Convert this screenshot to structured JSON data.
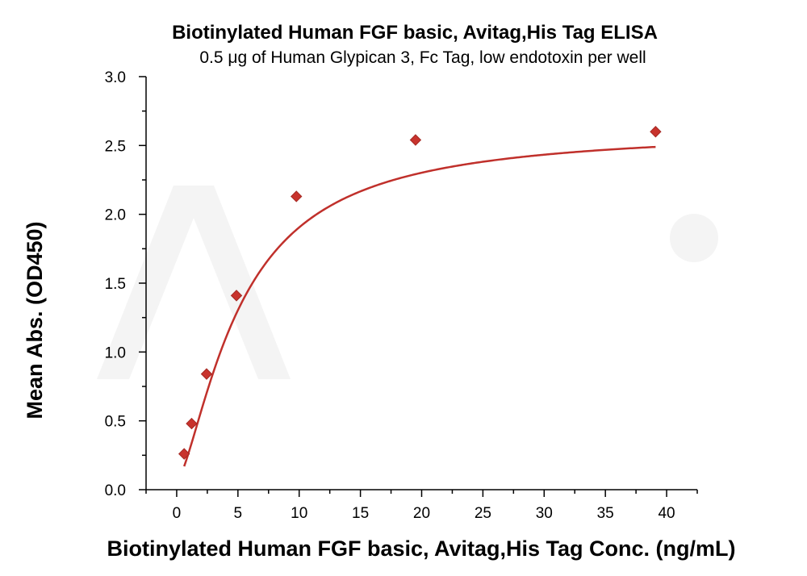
{
  "chart_data": {
    "type": "scatter",
    "title": "Biotinylated Human FGF basic, Avitag,His Tag ELISA",
    "subtitle": "0.5 μg of Human Glypican 3, Fc Tag, low endotoxin per well",
    "xlabel": "Biotinylated Human FGF basic, Avitag,His Tag Conc. (ng/mL)",
    "ylabel": "Mean Abs. (OD450)",
    "xlim": [
      -2.5,
      42.5
    ],
    "ylim": [
      0,
      3.0
    ],
    "x_ticks": [
      "0",
      "5",
      "10",
      "15",
      "20",
      "25",
      "30",
      "35",
      "40"
    ],
    "y_ticks": [
      "0.0",
      "0.5",
      "1.0",
      "1.5",
      "2.0",
      "2.5",
      "3.0"
    ],
    "grid": false,
    "points": [
      {
        "x": 0.61,
        "y": 0.26
      },
      {
        "x": 1.22,
        "y": 0.48
      },
      {
        "x": 2.44,
        "y": 0.84
      },
      {
        "x": 4.88,
        "y": 1.41
      },
      {
        "x": 9.77,
        "y": 2.13
      },
      {
        "x": 19.5,
        "y": 2.54
      },
      {
        "x": 39.1,
        "y": 2.6
      }
    ],
    "fit": {
      "model": "4PL",
      "bottom": 0.06,
      "top": 2.62,
      "ec50": 5.2,
      "hill": 1.45
    },
    "colors": {
      "series": "#c8332d",
      "curve": "#c0302b"
    }
  }
}
